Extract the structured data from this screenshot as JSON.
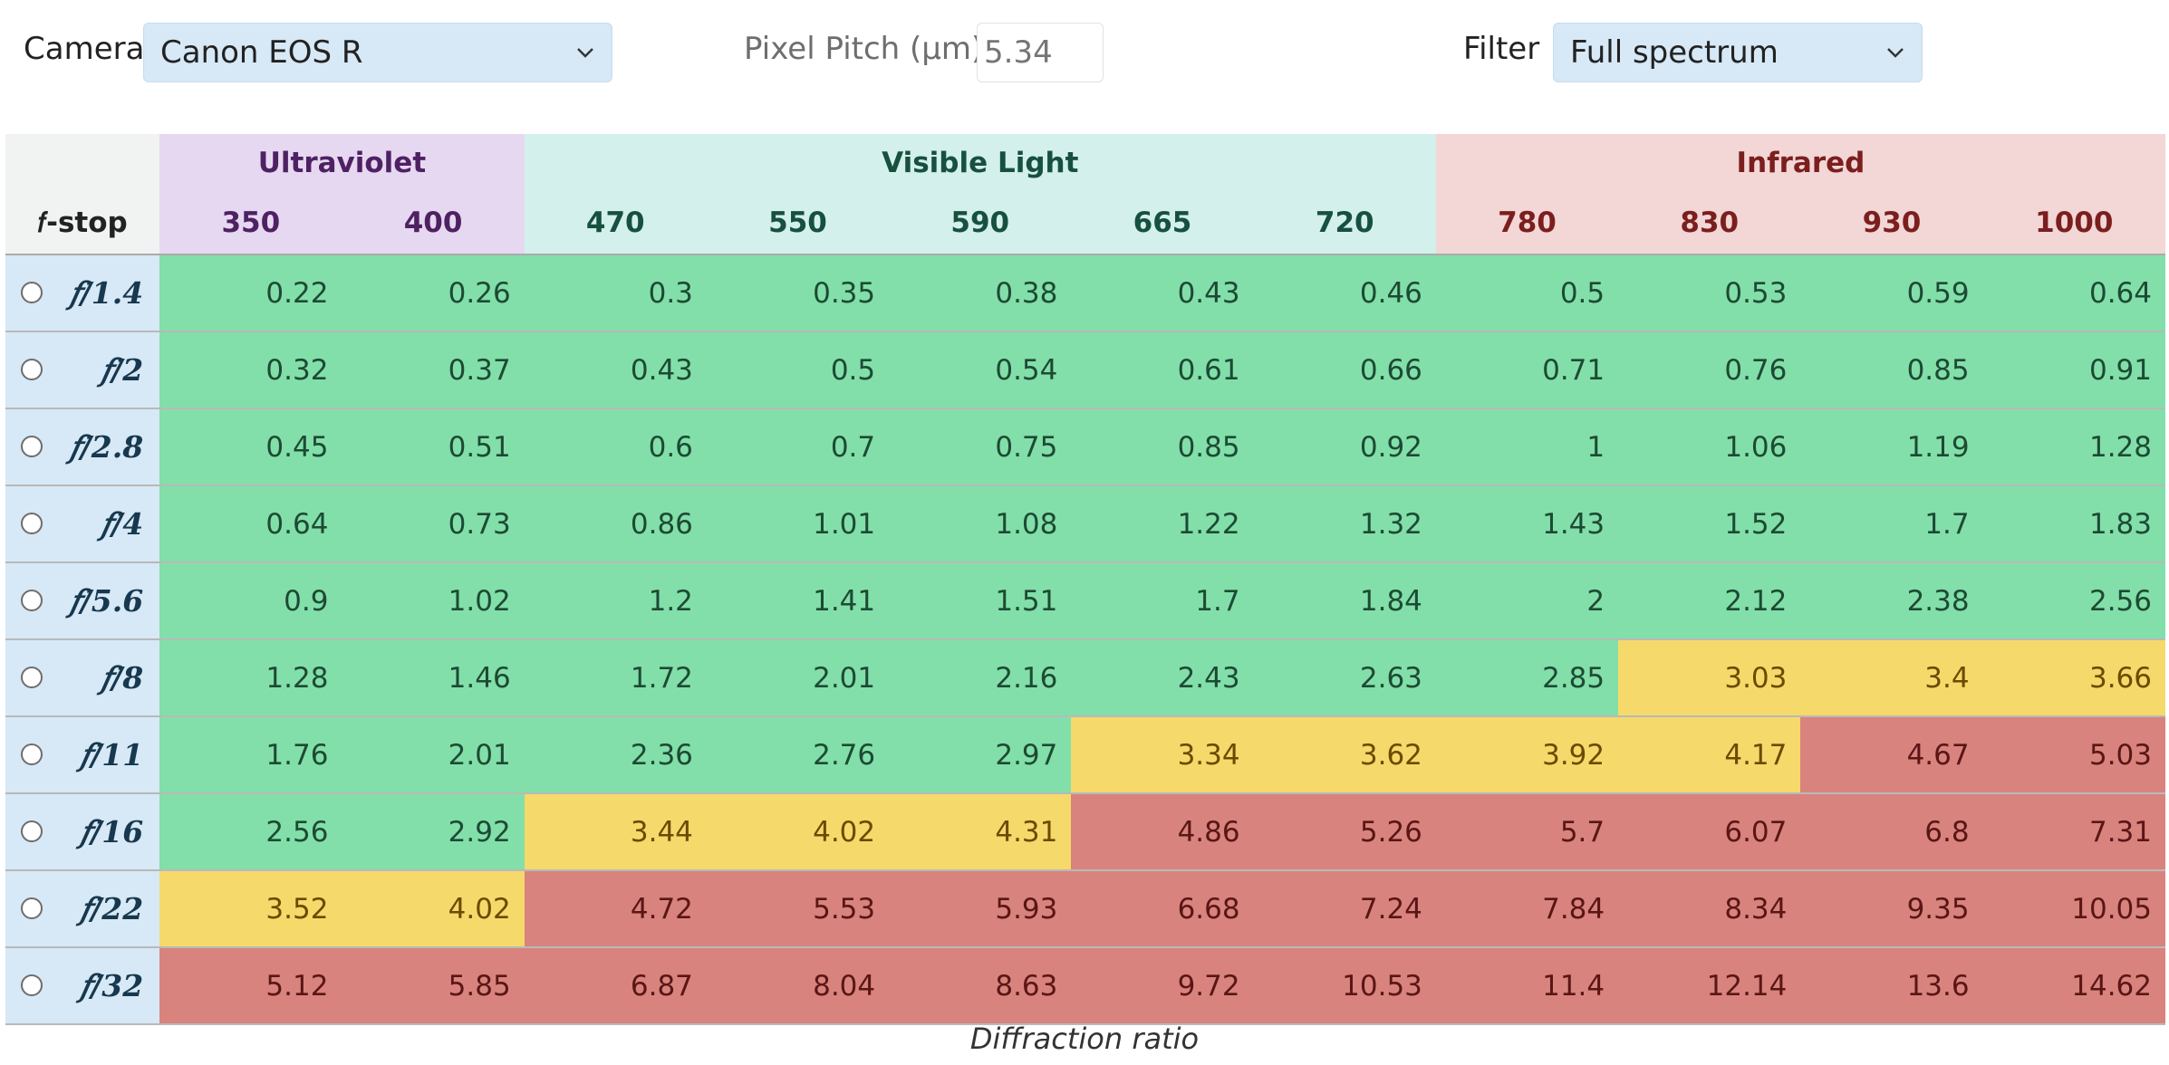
{
  "controls": {
    "camera_label": "Camera",
    "camera_value": "Canon EOS R",
    "pitch_label": "Pixel Pitch (µm)",
    "pitch_value": "5.34",
    "filter_label": "Filter",
    "filter_value": "Full spectrum"
  },
  "table": {
    "fstop_header": "𝑓-stop",
    "groups": [
      {
        "label": "Ultraviolet",
        "span": 2,
        "class": "uv"
      },
      {
        "label": "Visible Light",
        "span": 5,
        "class": "vis"
      },
      {
        "label": "Infrared",
        "span": 4,
        "class": "ir"
      }
    ],
    "wavelengths": [
      "350",
      "400",
      "470",
      "550",
      "590",
      "665",
      "720",
      "780",
      "830",
      "930",
      "1000"
    ],
    "wavelength_groups": [
      "uv",
      "uv",
      "vis",
      "vis",
      "vis",
      "vis",
      "vis",
      "ir",
      "ir",
      "ir",
      "ir"
    ],
    "rows": [
      {
        "fstop": "𝑓/1.4",
        "values": [
          "0.22",
          "0.26",
          "0.3",
          "0.35",
          "0.38",
          "0.43",
          "0.46",
          "0.5",
          "0.53",
          "0.59",
          "0.64"
        ],
        "status": [
          "g",
          "g",
          "g",
          "g",
          "g",
          "g",
          "g",
          "g",
          "g",
          "g",
          "g"
        ]
      },
      {
        "fstop": "𝑓/2",
        "values": [
          "0.32",
          "0.37",
          "0.43",
          "0.5",
          "0.54",
          "0.61",
          "0.66",
          "0.71",
          "0.76",
          "0.85",
          "0.91"
        ],
        "status": [
          "g",
          "g",
          "g",
          "g",
          "g",
          "g",
          "g",
          "g",
          "g",
          "g",
          "g"
        ]
      },
      {
        "fstop": "𝑓/2.8",
        "values": [
          "0.45",
          "0.51",
          "0.6",
          "0.7",
          "0.75",
          "0.85",
          "0.92",
          "1",
          "1.06",
          "1.19",
          "1.28"
        ],
        "status": [
          "g",
          "g",
          "g",
          "g",
          "g",
          "g",
          "g",
          "g",
          "g",
          "g",
          "g"
        ]
      },
      {
        "fstop": "𝑓/4",
        "values": [
          "0.64",
          "0.73",
          "0.86",
          "1.01",
          "1.08",
          "1.22",
          "1.32",
          "1.43",
          "1.52",
          "1.7",
          "1.83"
        ],
        "status": [
          "g",
          "g",
          "g",
          "g",
          "g",
          "g",
          "g",
          "g",
          "g",
          "g",
          "g"
        ]
      },
      {
        "fstop": "𝑓/5.6",
        "values": [
          "0.9",
          "1.02",
          "1.2",
          "1.41",
          "1.51",
          "1.7",
          "1.84",
          "2",
          "2.12",
          "2.38",
          "2.56"
        ],
        "status": [
          "g",
          "g",
          "g",
          "g",
          "g",
          "g",
          "g",
          "g",
          "g",
          "g",
          "g"
        ]
      },
      {
        "fstop": "𝑓/8",
        "values": [
          "1.28",
          "1.46",
          "1.72",
          "2.01",
          "2.16",
          "2.43",
          "2.63",
          "2.85",
          "3.03",
          "3.4",
          "3.66"
        ],
        "status": [
          "g",
          "g",
          "g",
          "g",
          "g",
          "g",
          "g",
          "g",
          "y",
          "y",
          "y"
        ]
      },
      {
        "fstop": "𝑓/11",
        "values": [
          "1.76",
          "2.01",
          "2.36",
          "2.76",
          "2.97",
          "3.34",
          "3.62",
          "3.92",
          "4.17",
          "4.67",
          "5.03"
        ],
        "status": [
          "g",
          "g",
          "g",
          "g",
          "g",
          "y",
          "y",
          "y",
          "y",
          "r",
          "r"
        ]
      },
      {
        "fstop": "𝑓/16",
        "values": [
          "2.56",
          "2.92",
          "3.44",
          "4.02",
          "4.31",
          "4.86",
          "5.26",
          "5.7",
          "6.07",
          "6.8",
          "7.31"
        ],
        "status": [
          "g",
          "g",
          "y",
          "y",
          "y",
          "r",
          "r",
          "r",
          "r",
          "r",
          "r"
        ]
      },
      {
        "fstop": "𝑓/22",
        "values": [
          "3.52",
          "4.02",
          "4.72",
          "5.53",
          "5.93",
          "6.68",
          "7.24",
          "7.84",
          "8.34",
          "9.35",
          "10.05"
        ],
        "status": [
          "y",
          "y",
          "r",
          "r",
          "r",
          "r",
          "r",
          "r",
          "r",
          "r",
          "r"
        ]
      },
      {
        "fstop": "𝑓/32",
        "values": [
          "5.12",
          "5.85",
          "6.87",
          "8.04",
          "8.63",
          "9.72",
          "10.53",
          "11.4",
          "12.14",
          "13.6",
          "14.62"
        ],
        "status": [
          "r",
          "r",
          "r",
          "r",
          "r",
          "r",
          "r",
          "r",
          "r",
          "r",
          "r"
        ]
      }
    ],
    "caption": "Diffraction ratio"
  },
  "colors": {
    "green": "#82dfa9",
    "yellow": "#f6d96b",
    "red": "#d8837d",
    "uv": "#e7d8f1",
    "visible": "#d3f0ec",
    "infrared": "#f3d6d6",
    "select_bg": "#d7e8f6"
  }
}
